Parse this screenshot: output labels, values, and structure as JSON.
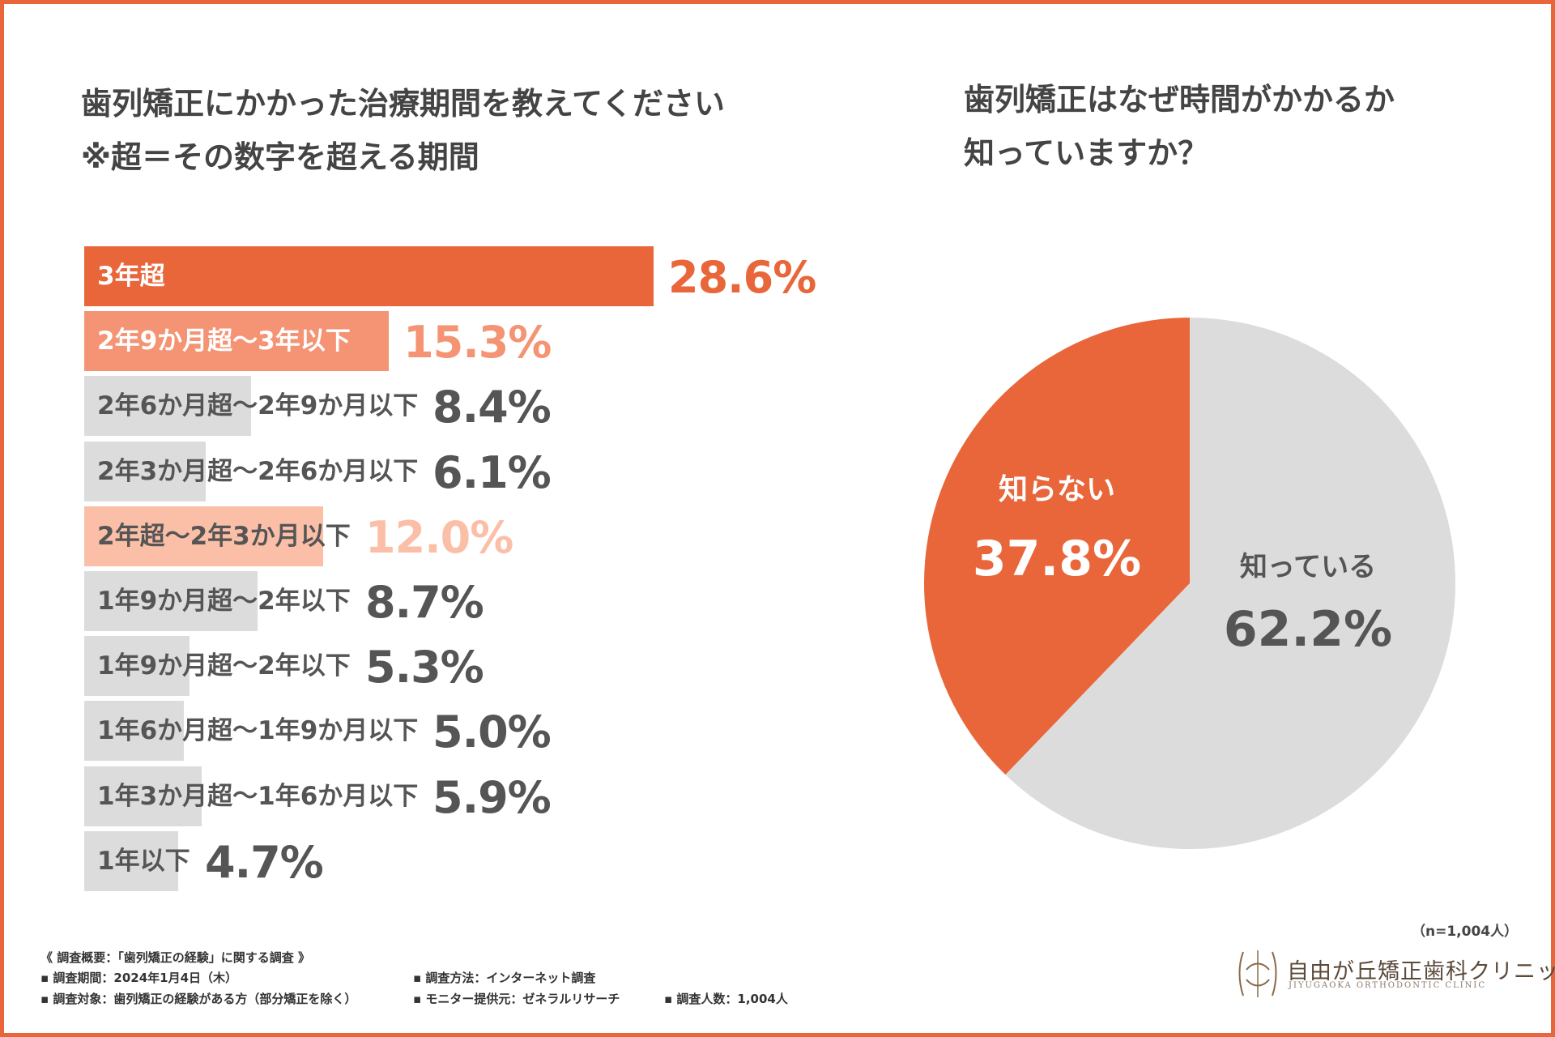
{
  "bar_title_line1": "歯列矯正にかかった治療期間を教えてください",
  "bar_title_line2": "※超＝その数字を超える期間",
  "pie_title_line1": "歯列矯正はなぜ時間がかかるか",
  "pie_title_line2": "知っていますか？",
  "colors": {
    "accent": "#e8663a",
    "light_orange": "#f49474",
    "pale_orange": "#fbbfa8",
    "gray_bar": "#dcdcdc",
    "dark_text": "#555555"
  },
  "chart_data": [
    {
      "type": "bar",
      "orientation": "horizontal",
      "title": "歯列矯正にかかった治療期間を教えてください",
      "subtitle": "※超＝その数字を超える期間",
      "categories": [
        "3年超",
        "2年9か月超～3年以下",
        "2年6か月超～2年9か月以下",
        "2年3か月超～2年6か月以下",
        "2年超～2年3か月以下",
        "1年9か月超～2年以下",
        "1年9か月超～2年以下",
        "1年6か月超～1年9か月以下",
        "1年3か月超～1年6か月以下",
        "1年以下"
      ],
      "values": [
        28.6,
        15.3,
        8.4,
        6.1,
        12.0,
        8.7,
        5.3,
        5.0,
        5.9,
        4.7
      ],
      "value_labels": [
        "28.6%",
        "15.3%",
        "8.4%",
        "6.1%",
        "12.0%",
        "8.7%",
        "5.3%",
        "5.0%",
        "5.9%",
        "4.7%"
      ],
      "unit": "%"
    },
    {
      "type": "pie",
      "title": "歯列矯正はなぜ時間がかかるか知っていますか？",
      "slices": [
        {
          "label": "知らない",
          "value": 37.8,
          "value_label": "37.8%"
        },
        {
          "label": "知っている",
          "value": 62.2,
          "value_label": "62.2%"
        }
      ]
    }
  ],
  "sample_size": "（n=1,004人）",
  "notes": {
    "header": "《 調査概要：「歯列矯正の経験」に関する調査 》",
    "period": "▪ 調査期間：2024年1月4日（木）",
    "target": "▪ 調査対象：歯列矯正の経験がある方（部分矯正を除く）",
    "method": "▪ 調査方法：インターネット調査",
    "provider": "▪ モニター提供元：ゼネラルリサーチ",
    "count": "▪ 調査人数：1,004人"
  },
  "logo": {
    "name": "自由が丘矯正歯科クリニック",
    "sub": "JIYUGAOKA ORTHODONTIC CLINIC"
  }
}
